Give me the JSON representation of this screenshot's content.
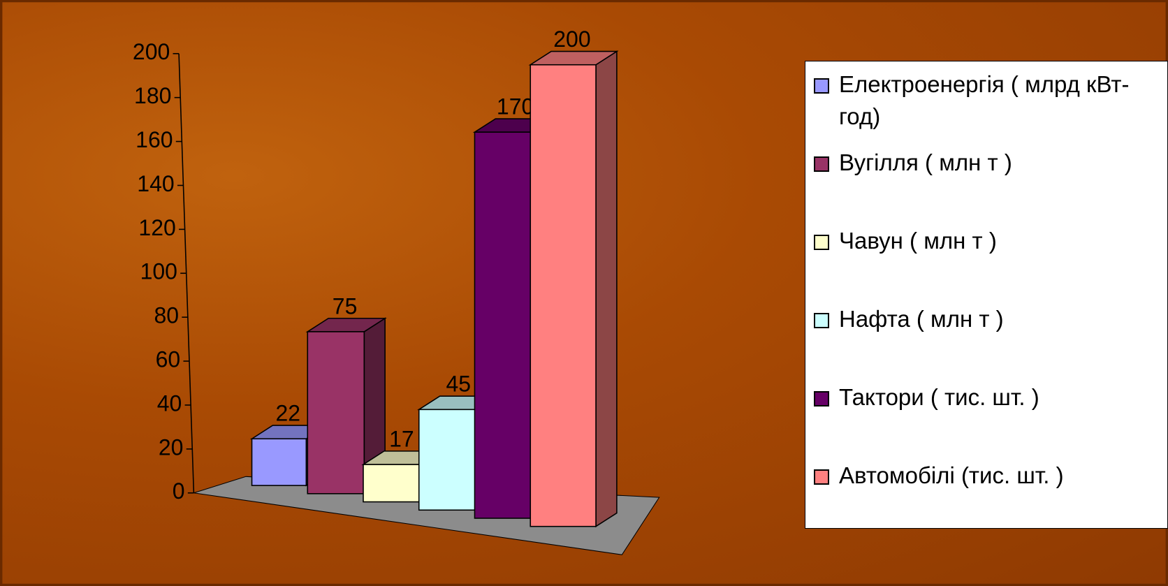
{
  "chart_data": {
    "type": "bar3d",
    "series": [
      {
        "name": "Електроенергія ( млрд кВт-год)",
        "color": "#9999ff",
        "values": [
          22
        ]
      },
      {
        "name": "Вугілля ( млн т )",
        "color": "#993366",
        "values": [
          75
        ]
      },
      {
        "name": "Чавун ( млн т )",
        "color": "#ffffcc",
        "values": [
          17
        ]
      },
      {
        "name": "Нафта ( млн т )",
        "color": "#ccffff",
        "values": [
          45
        ]
      },
      {
        "name": "Тактори ( тис. шт. )",
        "color": "#660066",
        "values": [
          170
        ]
      },
      {
        "name": "Автомобілі (тис. шт. )",
        "color": "#ff8080",
        "values": [
          200
        ]
      }
    ],
    "ylim": [
      0,
      200
    ],
    "yticks": [
      0,
      20,
      40,
      60,
      80,
      100,
      120,
      140,
      160,
      180,
      200
    ],
    "legend": "right",
    "floor_color": "#8c8c8c"
  }
}
